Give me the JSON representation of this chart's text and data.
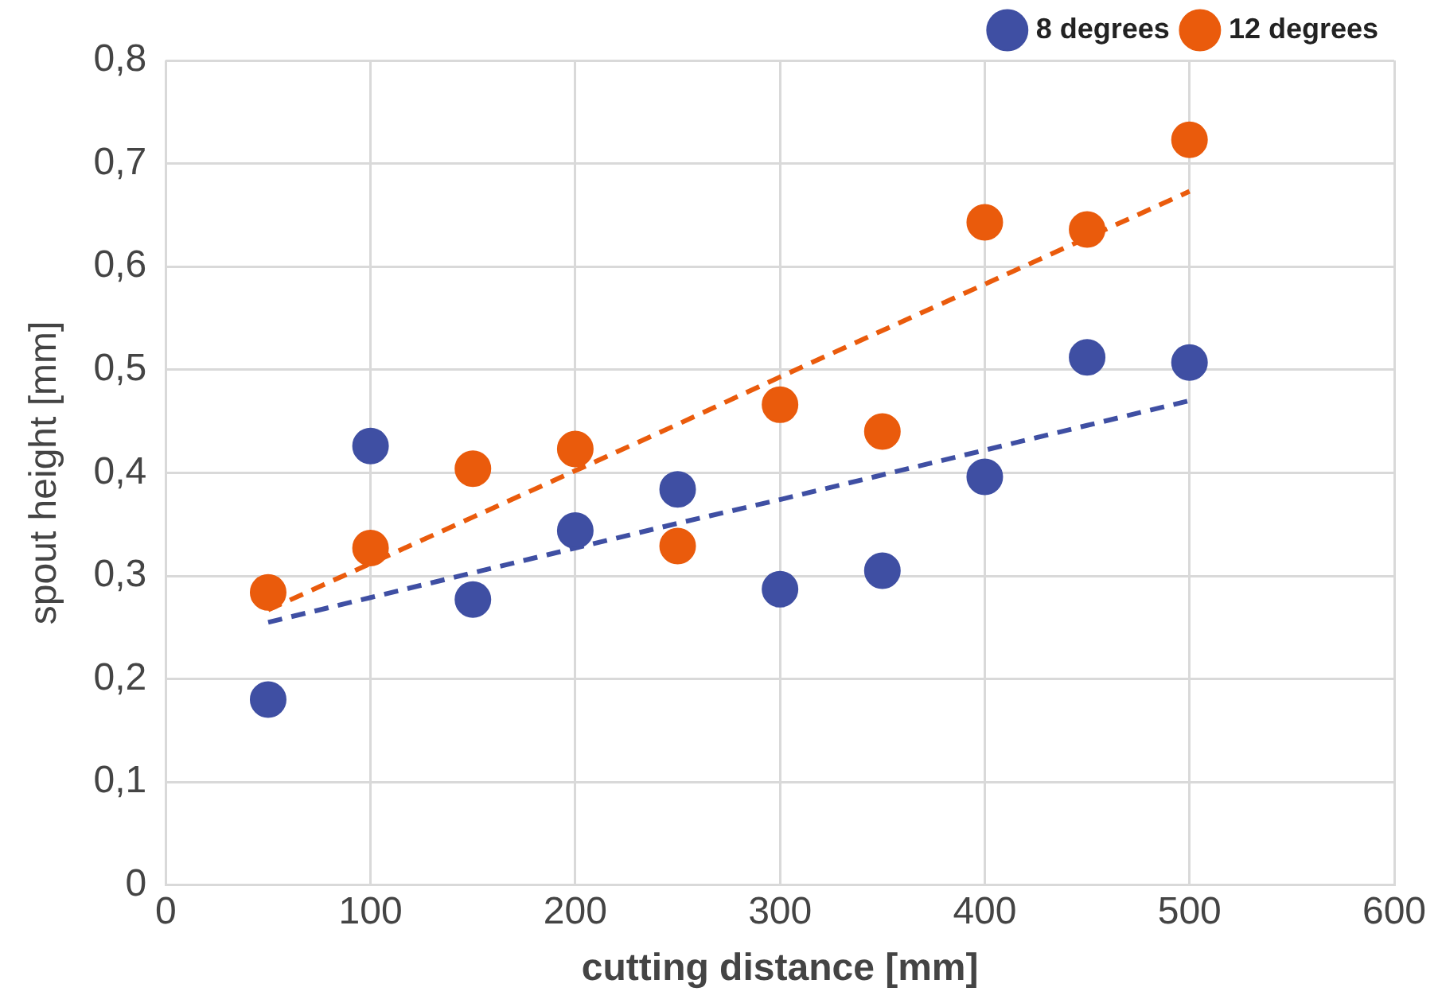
{
  "chart_data": {
    "type": "scatter",
    "xlabel": "cutting distance [mm]",
    "ylabel": "spout height [mm]",
    "x": [
      50,
      100,
      150,
      200,
      250,
      300,
      350,
      400,
      450,
      500
    ],
    "series": [
      {
        "name": "8 degrees",
        "color": "#3f4fa3",
        "marker": "circle",
        "values": [
          0.18,
          0.426,
          0.277,
          0.344,
          0.384,
          0.287,
          0.305,
          0.396,
          0.512,
          0.507
        ]
      },
      {
        "name": "12 degrees",
        "color": "#ea5b0c",
        "marker": "circle",
        "values": [
          0.284,
          0.327,
          0.404,
          0.423,
          0.329,
          0.466,
          0.44,
          0.643,
          0.636,
          0.723
        ]
      },
      {
        "type": "line",
        "color": "#3f4fa3",
        "marker": "none",
        "line_style": "dashed",
        "values": [
          0.255,
          0.279,
          0.303,
          0.327,
          0.351,
          0.374,
          0.398,
          0.422,
          0.446,
          0.47
        ]
      },
      {
        "type": "line",
        "color": "#ea5b0c",
        "marker": "none",
        "line_style": "dashed",
        "values": [
          0.267,
          0.312,
          0.357,
          0.402,
          0.447,
          0.493,
          0.538,
          0.583,
          0.628,
          0.673
        ]
      }
    ],
    "xlim": [
      0,
      600
    ],
    "xticks": [
      0,
      100,
      200,
      300,
      400,
      500,
      600
    ],
    "ylim": [
      0,
      0.8
    ],
    "yticks": [
      0,
      {
        "value": 0.1,
        "label": "0,1"
      },
      {
        "value": 0.2,
        "label": "0,2"
      },
      {
        "value": 0.3,
        "label": "0,3"
      },
      {
        "value": 0.4,
        "label": "0,4"
      },
      {
        "value": 0.5,
        "label": "0,5"
      },
      {
        "value": 0.6,
        "label": "0,6"
      },
      {
        "value": 0.7,
        "label": "0,7"
      },
      {
        "value": 0.8,
        "label": "0,8"
      }
    ],
    "grid": true,
    "legend": "top right"
  }
}
